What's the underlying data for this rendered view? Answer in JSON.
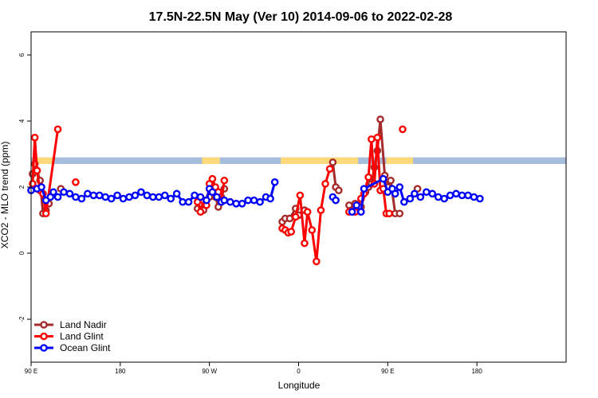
{
  "chart_data": {
    "type": "line",
    "title": "17.5N-22.5N May (Ver 10)   2014-09-06 to 2022-02-28",
    "xlabel": "Longitude",
    "ylabel": "XCO2 - MLO trend (ppm)",
    "xlim": [
      -90,
      270
    ],
    "ylim": [
      -3.3,
      6.7
    ],
    "x_ticks": [
      {
        "value": -90,
        "label": "90 E"
      },
      {
        "value": -30,
        "label": "180"
      },
      {
        "value": 30,
        "label": "90 W"
      },
      {
        "value": 90,
        "label": "0"
      },
      {
        "value": 150,
        "label": "90 E"
      },
      {
        "value": 210,
        "label": "180"
      }
    ],
    "y_ticks": [
      {
        "value": -2,
        "label": "-2"
      },
      {
        "value": 0,
        "label": "0"
      },
      {
        "value": 2,
        "label": "2"
      },
      {
        "value": 4,
        "label": "4"
      },
      {
        "value": 6,
        "label": "6"
      }
    ],
    "grid": false,
    "legend_position": "bottom-left",
    "land_mask_band": {
      "y_min": 2.7,
      "y_max": 2.9,
      "ocean_color": "#a6bddb",
      "land_color": "#fdd97a",
      "land_ranges": [
        [
          -89,
          -75
        ],
        [
          25,
          37
        ],
        [
          78,
          130
        ],
        [
          149,
          167
        ]
      ]
    },
    "series": [
      {
        "name": "Land Nadir",
        "color": "#a52a2a",
        "segments": [
          [
            [
              -89,
              2.4
            ],
            [
              -87.5,
              2.7
            ],
            [
              -86,
              2.5
            ],
            [
              -84,
              2.2
            ],
            [
              -82,
              1.2
            ],
            [
              -80,
              1.3
            ],
            [
              -78,
              1.5
            ]
          ],
          [
            [
              -70,
              1.95
            ]
          ],
          [
            [
              22,
              1.35
            ],
            [
              24,
              1.5
            ],
            [
              26,
              1.3
            ],
            [
              28,
              1.6
            ],
            [
              30,
              1.7
            ],
            [
              32,
              2.0
            ],
            [
              34,
              1.7
            ],
            [
              36,
              1.4
            ],
            [
              38,
              1.7
            ],
            [
              40,
              1.95
            ]
          ],
          [
            [
              79,
              0.95
            ],
            [
              81,
              1.05
            ],
            [
              84,
              1.05
            ],
            [
              88,
              1.35
            ],
            [
              90,
              1.15
            ],
            [
              94,
              1.3
            ]
          ],
          [
            [
              113,
              2.75
            ],
            [
              115,
              2.0
            ],
            [
              117,
              1.9
            ]
          ],
          [
            [
              124,
              1.45
            ],
            [
              126,
              1.3
            ],
            [
              128,
              1.5
            ],
            [
              132,
              1.4
            ],
            [
              135,
              1.85
            ],
            [
              137,
              2.0
            ],
            [
              139,
              2.1
            ],
            [
              141,
              2.6
            ],
            [
              143,
              3.1
            ],
            [
              145,
              4.05
            ],
            [
              148,
              2.35
            ],
            [
              150,
              2.0
            ],
            [
              152,
              2.2
            ],
            [
              155,
              1.2
            ],
            [
              158,
              1.2
            ]
          ],
          [
            [
              170,
              1.95
            ]
          ]
        ]
      },
      {
        "name": "Land Glint",
        "color": "#ff0000",
        "segments": [
          [
            [
              -89,
              2.1
            ],
            [
              -87.5,
              3.5
            ],
            [
              -86,
              2.5
            ],
            [
              -84,
              1.9
            ],
            [
              -82,
              1.8
            ],
            [
              -80,
              1.2
            ],
            [
              -72,
              3.75
            ]
          ],
          [
            [
              -60,
              2.15
            ]
          ],
          [
            [
              22,
              1.55
            ],
            [
              24,
              1.25
            ],
            [
              26,
              1.6
            ],
            [
              28,
              1.45
            ],
            [
              30,
              2.1
            ],
            [
              32,
              2.25
            ],
            [
              34,
              2.0
            ],
            [
              36,
              1.85
            ],
            [
              38,
              1.55
            ],
            [
              40,
              2.2
            ]
          ],
          [
            [
              79,
              0.75
            ],
            [
              81,
              0.7
            ],
            [
              83,
              0.62
            ],
            [
              85,
              0.65
            ],
            [
              88,
              1.1
            ],
            [
              91,
              1.75
            ],
            [
              94,
              0.3
            ],
            [
              96,
              1.25
            ],
            [
              99,
              0.7
            ],
            [
              102,
              -0.25
            ],
            [
              105,
              1.3
            ],
            [
              108,
              2.1
            ],
            [
              111,
              2.55
            ]
          ],
          [
            [
              124,
              1.25
            ],
            [
              128,
              1.25
            ],
            [
              132,
              1.65
            ],
            [
              134,
              1.8
            ],
            [
              137,
              2.3
            ],
            [
              139,
              3.45
            ],
            [
              141,
              2.1
            ],
            [
              143,
              3.5
            ],
            [
              145,
              1.9
            ],
            [
              147,
              1.95
            ],
            [
              149,
              1.2
            ],
            [
              151,
              1.2
            ]
          ],
          [
            [
              160,
              3.75
            ]
          ]
        ]
      },
      {
        "name": "Ocean Glint",
        "color": "#0000ff",
        "segments": [
          [
            [
              -90,
              1.9
            ],
            [
              -86,
              1.95
            ],
            [
              -83,
              2.0
            ],
            [
              -80,
              1.6
            ],
            [
              -77,
              1.7
            ],
            [
              -75,
              1.85
            ],
            [
              -72,
              1.7
            ],
            [
              -68,
              1.85
            ],
            [
              -64,
              1.8
            ],
            [
              -60,
              1.7
            ],
            [
              -56,
              1.65
            ],
            [
              -52,
              1.8
            ],
            [
              -48,
              1.75
            ],
            [
              -44,
              1.75
            ],
            [
              -40,
              1.7
            ],
            [
              -36,
              1.65
            ],
            [
              -32,
              1.75
            ],
            [
              -28,
              1.65
            ],
            [
              -24,
              1.7
            ],
            [
              -20,
              1.75
            ],
            [
              -16,
              1.85
            ],
            [
              -12,
              1.75
            ],
            [
              -8,
              1.7
            ],
            [
              -4,
              1.7
            ],
            [
              0,
              1.75
            ],
            [
              4,
              1.65
            ],
            [
              8,
              1.8
            ],
            [
              12,
              1.55
            ],
            [
              16,
              1.55
            ],
            [
              20,
              1.75
            ],
            [
              24,
              1.7
            ],
            [
              28,
              1.6
            ],
            [
              30,
              1.95
            ],
            [
              32,
              1.85
            ],
            [
              35,
              1.7
            ],
            [
              38,
              1.55
            ],
            [
              40,
              1.6
            ],
            [
              44,
              1.55
            ],
            [
              48,
              1.5
            ],
            [
              52,
              1.5
            ],
            [
              56,
              1.6
            ],
            [
              60,
              1.6
            ],
            [
              64,
              1.55
            ],
            [
              68,
              1.7
            ],
            [
              71,
              1.65
            ],
            [
              74,
              2.15
            ]
          ],
          [
            [
              113,
              1.7
            ],
            [
              115,
              1.6
            ]
          ],
          [
            [
              126,
              1.25
            ],
            [
              129,
              1.45
            ],
            [
              132,
              1.25
            ],
            [
              134,
              1.95
            ],
            [
              147,
              2.25
            ],
            [
              150,
              1.85
            ],
            [
              153,
              1.95
            ],
            [
              155,
              1.8
            ],
            [
              158,
              2.0
            ],
            [
              161,
              1.55
            ],
            [
              165,
              1.65
            ],
            [
              168,
              1.8
            ],
            [
              172,
              1.7
            ],
            [
              176,
              1.85
            ],
            [
              180,
              1.8
            ],
            [
              184,
              1.7
            ],
            [
              188,
              1.65
            ],
            [
              192,
              1.75
            ],
            [
              196,
              1.8
            ],
            [
              200,
              1.75
            ],
            [
              204,
              1.75
            ],
            [
              208,
              1.7
            ],
            [
              212,
              1.65
            ]
          ]
        ]
      }
    ]
  }
}
